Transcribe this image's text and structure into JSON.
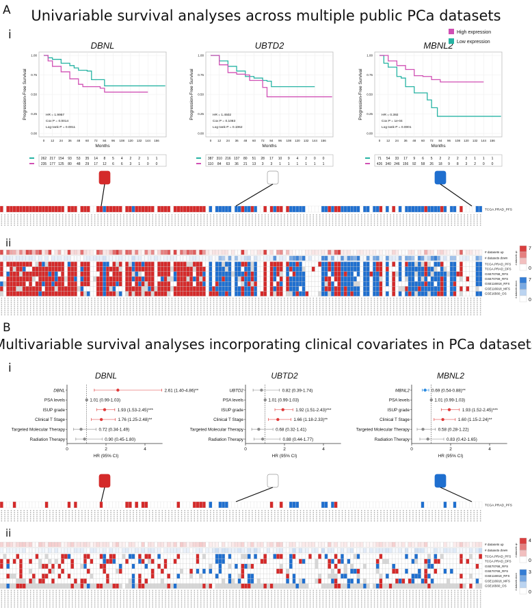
{
  "panelA": {
    "letter": "A",
    "title": "Univariable survival analyses across multiple public PCa datasets",
    "sub_i": "i",
    "sub_ii": "ii",
    "legend": [
      {
        "label": "High expression",
        "color": "#d04fb4"
      },
      {
        "label": "Low expression",
        "color": "#26b3a3"
      }
    ]
  },
  "panelB": {
    "letter": "B",
    "title": "Multivariable survival analyses incorporating clinical covariates in PCa datasets",
    "sub_i": "i",
    "sub_ii": "ii"
  },
  "colors": {
    "high": "#d04fb4",
    "low": "#26b3a3",
    "red": "#d42a2a",
    "blue": "#1f6fcf",
    "grey": "#d6d6d6",
    "forest_red": "#e03b3b",
    "forest_blue": "#2d8ce0",
    "forest_grey": "#8a8a8a"
  },
  "chart_data": [
    {
      "type": "line",
      "title": "DBNL",
      "ylabel": "Progression-Free Survival",
      "xlabel": "Months",
      "xticks": [
        0,
        12,
        24,
        36,
        48,
        60,
        72,
        84,
        96,
        108,
        120,
        132,
        144,
        156
      ],
      "yticks": [
        "0.00",
        "0.25",
        "0.50",
        "0.75",
        "1.00"
      ],
      "xlim": [
        0,
        168
      ],
      "ylim": [
        0,
        1
      ],
      "stats": [
        "HR = 1.9957",
        "Cox P = 0.0014",
        "Log-rank P = 0.0011"
      ],
      "series": [
        {
          "name": "Low expression",
          "points": [
            [
              0,
              1
            ],
            [
              6,
              0.97
            ],
            [
              12,
              0.95
            ],
            [
              24,
              0.9
            ],
            [
              36,
              0.87
            ],
            [
              42,
              0.84
            ],
            [
              48,
              0.81
            ],
            [
              60,
              0.8
            ],
            [
              66,
              0.69
            ],
            [
              78,
              0.69
            ],
            [
              84,
              0.61
            ],
            [
              168,
              0.61
            ]
          ]
        },
        {
          "name": "High expression",
          "points": [
            [
              0,
              1
            ],
            [
              6,
              0.93
            ],
            [
              12,
              0.86
            ],
            [
              24,
              0.79
            ],
            [
              36,
              0.7
            ],
            [
              48,
              0.63
            ],
            [
              54,
              0.6
            ],
            [
              72,
              0.6
            ],
            [
              78,
              0.58
            ],
            [
              84,
              0.53
            ],
            [
              144,
              0.53
            ]
          ]
        }
      ],
      "risk_table": {
        "Low expression": [
          262,
          217,
          154,
          93,
          53,
          35,
          14,
          8,
          5,
          4,
          2,
          2,
          1,
          1
        ],
        "High expression": [
          235,
          177,
          125,
          80,
          48,
          29,
          17,
          12,
          6,
          6,
          3,
          1,
          0,
          0
        ]
      }
    },
    {
      "type": "line",
      "title": "UBTD2",
      "ylabel": "Progression-Free Survival",
      "xlabel": "Months",
      "xticks": [
        0,
        12,
        24,
        36,
        48,
        60,
        72,
        84,
        96,
        108,
        120,
        132,
        144,
        156
      ],
      "yticks": [
        "0.00",
        "0.25",
        "0.50",
        "0.75",
        "1.00"
      ],
      "xlim": [
        0,
        168
      ],
      "ylim": [
        0,
        1
      ],
      "stats": [
        "HR = 1.4502",
        "Cox P = 0.1083",
        "Log-rank P = 0.1062"
      ],
      "series": [
        {
          "name": "Low expression",
          "points": [
            [
              0,
              1
            ],
            [
              12,
              0.93
            ],
            [
              24,
              0.86
            ],
            [
              36,
              0.8
            ],
            [
              48,
              0.73
            ],
            [
              60,
              0.71
            ],
            [
              72,
              0.68
            ],
            [
              78,
              0.67
            ],
            [
              84,
              0.6
            ],
            [
              144,
              0.6
            ]
          ]
        },
        {
          "name": "High expression",
          "points": [
            [
              0,
              1
            ],
            [
              12,
              0.88
            ],
            [
              24,
              0.78
            ],
            [
              36,
              0.76
            ],
            [
              48,
              0.75
            ],
            [
              54,
              0.68
            ],
            [
              66,
              0.68
            ],
            [
              72,
              0.59
            ],
            [
              78,
              0.47
            ],
            [
              168,
              0.47
            ]
          ]
        }
      ],
      "risk_table": {
        "Low expression": [
          387,
          310,
          216,
          137,
          80,
          51,
          28,
          17,
          10,
          9,
          4,
          2,
          0,
          0
        ],
        "High expression": [
          110,
          84,
          63,
          36,
          21,
          13,
          3,
          3,
          1,
          1,
          1,
          1,
          1,
          1
        ]
      }
    },
    {
      "type": "line",
      "title": "MBNL2",
      "ylabel": "Progression-Free Survival",
      "xlabel": "Months",
      "xticks": [
        0,
        12,
        24,
        36,
        48,
        60,
        72,
        84,
        96,
        108,
        120,
        132,
        144,
        156
      ],
      "yticks": [
        "0.00",
        "0.25",
        "0.50",
        "0.75",
        "1.00"
      ],
      "xlim": [
        0,
        168
      ],
      "ylim": [
        0,
        1
      ],
      "stats": [
        "HR = 0.392",
        "Cox P = 1e-04",
        "Log-rank P = 0.0001"
      ],
      "series": [
        {
          "name": "Low expression",
          "points": [
            [
              0,
              1
            ],
            [
              6,
              0.9
            ],
            [
              12,
              0.85
            ],
            [
              24,
              0.73
            ],
            [
              30,
              0.71
            ],
            [
              36,
              0.6
            ],
            [
              48,
              0.52
            ],
            [
              66,
              0.43
            ],
            [
              72,
              0.33
            ],
            [
              80,
              0.22
            ],
            [
              168,
              0.22
            ]
          ]
        },
        {
          "name": "High expression",
          "points": [
            [
              0,
              1
            ],
            [
              12,
              0.93
            ],
            [
              24,
              0.87
            ],
            [
              36,
              0.82
            ],
            [
              48,
              0.74
            ],
            [
              60,
              0.73
            ],
            [
              72,
              0.69
            ],
            [
              84,
              0.66
            ],
            [
              144,
              0.66
            ]
          ]
        }
      ],
      "risk_table": {
        "Low expression": [
          71,
          54,
          33,
          17,
          9,
          6,
          5,
          2,
          2,
          2,
          2,
          1,
          1,
          1
        ],
        "High expression": [
          426,
          340,
          246,
          156,
          92,
          58,
          26,
          18,
          9,
          8,
          3,
          2,
          0,
          0
        ]
      }
    }
  ],
  "forest": {
    "xlabel": "HR (95% CI)",
    "xticks": [
      0,
      2,
      4
    ],
    "plots": [
      {
        "title": "DBNL",
        "rows": [
          {
            "label": "DBNL",
            "hr": 2.61,
            "lo": 1.4,
            "hi": 4.86,
            "text": "2.61 (1.40-4.86)**",
            "kind": "red",
            "italic": true
          },
          {
            "label": "PSA levels",
            "hr": 1.01,
            "lo": 0.99,
            "hi": 1.03,
            "text": "1.01 (0.99-1.03)",
            "kind": "grey"
          },
          {
            "label": "ISUP grade",
            "hr": 1.93,
            "lo": 1.53,
            "hi": 2.45,
            "text": "1.93 (1.53-2.45)***",
            "kind": "red"
          },
          {
            "label": "Clinical T Stage",
            "hr": 1.76,
            "lo": 1.25,
            "hi": 2.48,
            "text": "1.76 (1.25-2.48)**",
            "kind": "red"
          },
          {
            "label": "Targeted Molecular Therapy",
            "hr": 0.72,
            "lo": 0.34,
            "hi": 1.49,
            "text": "0.72 (0.34-1.49)",
            "kind": "grey"
          },
          {
            "label": "Radiation Therapy",
            "hr": 0.9,
            "lo": 0.45,
            "hi": 1.8,
            "text": "0.90 (0.45-1.80)",
            "kind": "grey"
          }
        ]
      },
      {
        "title": "UBTD2",
        "rows": [
          {
            "label": "UBTD2",
            "hr": 0.82,
            "lo": 0.39,
            "hi": 1.74,
            "text": "0.82 (0.39-1.74)",
            "kind": "grey",
            "italic": true
          },
          {
            "label": "PSA levels",
            "hr": 1.01,
            "lo": 0.99,
            "hi": 1.03,
            "text": "1.01 (0.99-1.03)",
            "kind": "grey"
          },
          {
            "label": "ISUP grade",
            "hr": 1.92,
            "lo": 1.51,
            "hi": 2.43,
            "text": "1.92 (1.51-2.43)***",
            "kind": "red"
          },
          {
            "label": "Clinical T Stage",
            "hr": 1.66,
            "lo": 1.18,
            "hi": 2.33,
            "text": "1.66 (1.18-2.33)**",
            "kind": "red"
          },
          {
            "label": "Targeted Molecular Therapy",
            "hr": 0.68,
            "lo": 0.32,
            "hi": 1.41,
            "text": "0.68 (0.32-1.41)",
            "kind": "grey"
          },
          {
            "label": "Radiation Therapy",
            "hr": 0.88,
            "lo": 0.44,
            "hi": 1.77,
            "text": "0.88 (0.44-1.77)",
            "kind": "grey"
          }
        ]
      },
      {
        "title": "MBNL2",
        "rows": [
          {
            "label": "MBNL2",
            "hr": 0.69,
            "lo": 0.54,
            "hi": 0.88,
            "text": "0.69 (0.54-0.88)**",
            "kind": "blue",
            "italic": true
          },
          {
            "label": "PSA levels",
            "hr": 1.01,
            "lo": 0.99,
            "hi": 1.03,
            "text": "1.01 (0.99-1.03)",
            "kind": "grey"
          },
          {
            "label": "ISUP grade",
            "hr": 1.93,
            "lo": 1.52,
            "hi": 2.45,
            "text": "1.93 (1.52-2.45)***",
            "kind": "red"
          },
          {
            "label": "Clinical T Stage",
            "hr": 1.6,
            "lo": 1.15,
            "hi": 2.24,
            "text": "1.60 (1.15-2.24)**",
            "kind": "red"
          },
          {
            "label": "Targeted Molecular Therapy",
            "hr": 0.58,
            "lo": 0.28,
            "hi": 1.22,
            "text": "0.58 (0.28-1.22)",
            "kind": "grey"
          },
          {
            "label": "Radiation Therapy",
            "hr": 0.83,
            "lo": 0.42,
            "hi": 1.65,
            "text": "0.83 (0.42-1.65)",
            "kind": "grey"
          }
        ]
      }
    ]
  },
  "heatmap": {
    "strip_label": "TCGA.PRAD_PFS",
    "row_labels": [
      "# datasets up",
      "# datasets down",
      "TCGA.PRAD_PFS",
      "TCGA.PRAD_DFS",
      "GSE70768_RFS",
      "GSE70769_RFS",
      "GSE116918_RFS",
      "GSE116918_MFS",
      "GSE16560_OS"
    ],
    "legend_up_title": "# datasets up",
    "legend_down_title": "# datasets down",
    "A_legend_max": "7",
    "B_legend_up_max": "4",
    "B_legend_down_max": "3",
    "legend_min": "0",
    "columns": 150
  }
}
